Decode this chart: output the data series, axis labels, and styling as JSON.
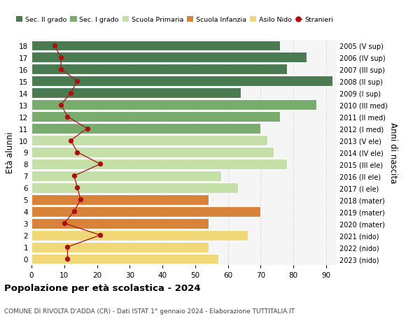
{
  "ages": [
    18,
    17,
    16,
    15,
    14,
    13,
    12,
    11,
    10,
    9,
    8,
    7,
    6,
    5,
    4,
    3,
    2,
    1,
    0
  ],
  "right_labels": [
    "2005 (V sup)",
    "2006 (IV sup)",
    "2007 (III sup)",
    "2008 (II sup)",
    "2009 (I sup)",
    "2010 (III med)",
    "2011 (II med)",
    "2012 (I med)",
    "2013 (V ele)",
    "2014 (IV ele)",
    "2015 (III ele)",
    "2016 (II ele)",
    "2017 (I ele)",
    "2018 (mater)",
    "2019 (mater)",
    "2020 (mater)",
    "2021 (nido)",
    "2022 (nido)",
    "2023 (nido)"
  ],
  "bar_values": [
    76,
    84,
    78,
    92,
    64,
    87,
    76,
    70,
    72,
    74,
    78,
    58,
    63,
    54,
    70,
    54,
    66,
    54,
    57
  ],
  "bar_colors": [
    "#4a7a50",
    "#4a7a50",
    "#4a7a50",
    "#4a7a50",
    "#4a7a50",
    "#7aab6e",
    "#7aab6e",
    "#7aab6e",
    "#c5dfa8",
    "#c5dfa8",
    "#c5dfa8",
    "#c5dfa8",
    "#c5dfa8",
    "#d9823a",
    "#d9823a",
    "#d9823a",
    "#f0d878",
    "#f0d878",
    "#f0d878"
  ],
  "stranieri_values": [
    7,
    9,
    9,
    14,
    12,
    9,
    11,
    17,
    12,
    14,
    21,
    13,
    14,
    15,
    13,
    10,
    21,
    11,
    11
  ],
  "legend_labels": [
    "Sec. II grado",
    "Sec. I grado",
    "Scuola Primaria",
    "Scuola Infanzia",
    "Asilo Nido",
    "Stranieri"
  ],
  "legend_colors": [
    "#4a7a50",
    "#7aab6e",
    "#c5dfa8",
    "#d9823a",
    "#f0d878",
    "#aa1111"
  ],
  "ylabel_left": "Età alunni",
  "ylabel_right": "Anni di nascita",
  "title": "Popolazione per età scolastica - 2024",
  "subtitle": "COMUNE DI RIVOLTA D'ADDA (CR) - Dati ISTAT 1° gennaio 2024 - Elaborazione TUTTITALIA.IT",
  "xlim": [
    0,
    93
  ],
  "xticks": [
    0,
    10,
    20,
    30,
    40,
    50,
    60,
    70,
    80,
    90
  ],
  "bg_color": "#ffffff",
  "bar_bg_color": "#f5f5f5",
  "grid_color": "#d8d8d8"
}
